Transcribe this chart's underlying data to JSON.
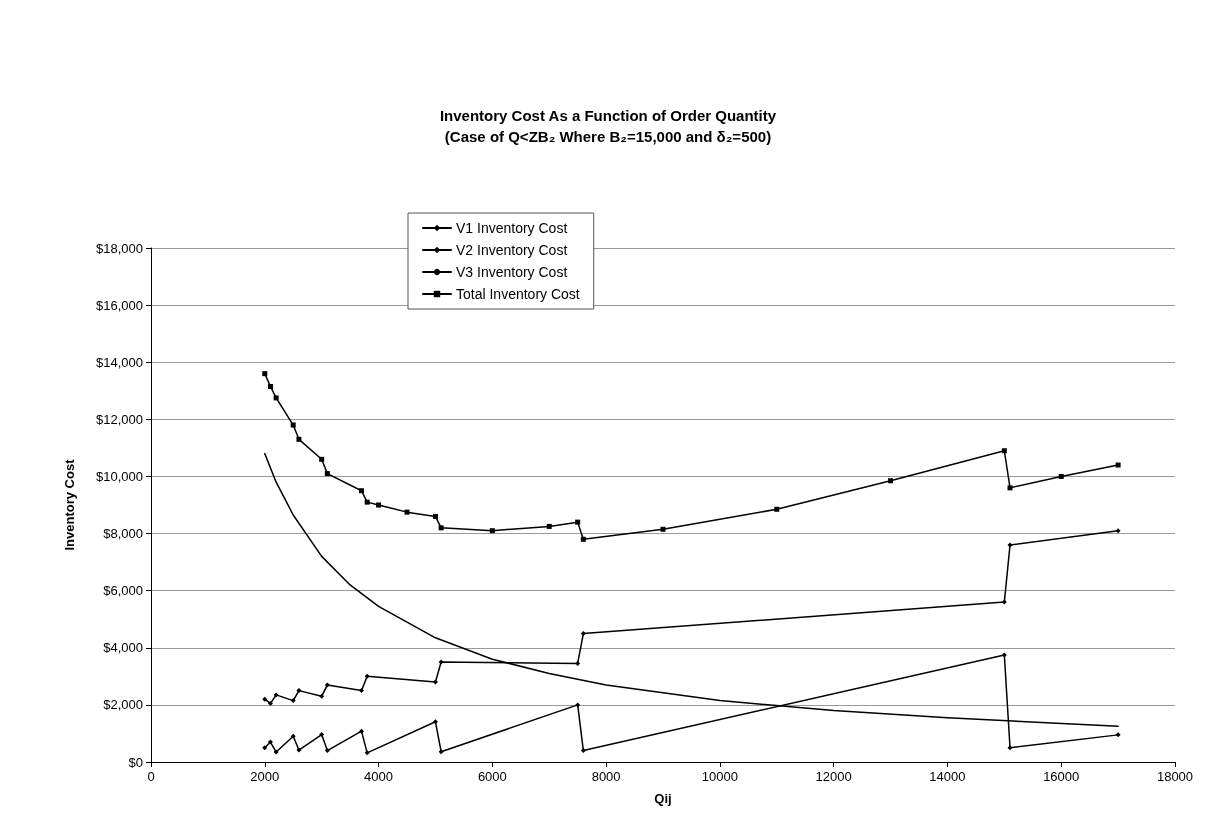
{
  "chart_data": {
    "type": "line",
    "title": "Inventory Cost As a Function of Order Quantity",
    "subtitle": "(Case of Q<ZB₂ Where B₂=15,000 and δ₂=500)",
    "xlabel": "Qij",
    "ylabel": "Inventory Cost",
    "xlim": [
      0,
      18000
    ],
    "xticks": [
      0,
      2000,
      4000,
      6000,
      8000,
      10000,
      12000,
      14000,
      16000,
      18000
    ],
    "ylim": [
      0,
      18000
    ],
    "yticks": [
      {
        "value": 0,
        "label": "$0"
      },
      {
        "value": 2000,
        "label": "$2,000"
      },
      {
        "value": 4000,
        "label": "$4,000"
      },
      {
        "value": 6000,
        "label": "$6,000"
      },
      {
        "value": 8000,
        "label": "$8,000"
      },
      {
        "value": 10000,
        "label": "$10,000"
      },
      {
        "value": 12000,
        "label": "$12,000"
      },
      {
        "value": 14000,
        "label": "$14,000"
      },
      {
        "value": 16000,
        "label": "$16,000"
      },
      {
        "value": 18000,
        "label": "$18,000"
      }
    ],
    "grid": "y",
    "legend": "top left",
    "series": [
      {
        "name": "V1 Inventory Cost",
        "color": "#000000",
        "marker": "diamond",
        "x": [
          2000,
          2100,
          2200,
          2500,
          2600,
          3000,
          3100,
          3700,
          3800,
          5000,
          5100,
          7500,
          7600,
          15000,
          15100,
          17000
        ],
        "values": [
          500,
          700,
          350,
          900,
          420,
          960,
          400,
          1080,
          320,
          1410,
          360,
          2000,
          400,
          3750,
          500,
          950
        ]
      },
      {
        "name": "V2 Inventory Cost",
        "color": "#000000",
        "marker": "diamond",
        "x": [
          2000,
          2100,
          2200,
          2500,
          2600,
          3000,
          3100,
          3700,
          3800,
          5000,
          5100,
          7500,
          7600,
          15000,
          15100,
          17000
        ],
        "values": [
          2200,
          2050,
          2350,
          2150,
          2500,
          2300,
          2700,
          2500,
          3000,
          2800,
          3500,
          3450,
          4500,
          5600,
          7600,
          8100
        ]
      },
      {
        "name": "V3 Inventory Cost",
        "color": "#000000",
        "marker": "none",
        "x": [
          2000,
          2200,
          2500,
          3000,
          3500,
          4000,
          5000,
          6000,
          7000,
          8000,
          10000,
          12000,
          14000,
          17000
        ],
        "values": [
          10800,
          9800,
          8650,
          7200,
          6200,
          5450,
          4350,
          3600,
          3100,
          2700,
          2150,
          1800,
          1550,
          1250
        ]
      },
      {
        "name": "Total Inventory Cost",
        "color": "#000000",
        "marker": "square",
        "x": [
          2000,
          2100,
          2200,
          2500,
          2600,
          3000,
          3100,
          3700,
          3800,
          4000,
          4500,
          5000,
          5100,
          6000,
          7000,
          7500,
          7600,
          9000,
          11000,
          13000,
          15000,
          15100,
          16000,
          17000
        ],
        "values": [
          13600,
          13150,
          12750,
          11800,
          11300,
          10600,
          10100,
          9500,
          9100,
          9000,
          8750,
          8600,
          8200,
          8100,
          8250,
          8400,
          7800,
          8150,
          8850,
          9850,
          10900,
          9600,
          10000,
          10400
        ]
      }
    ]
  }
}
